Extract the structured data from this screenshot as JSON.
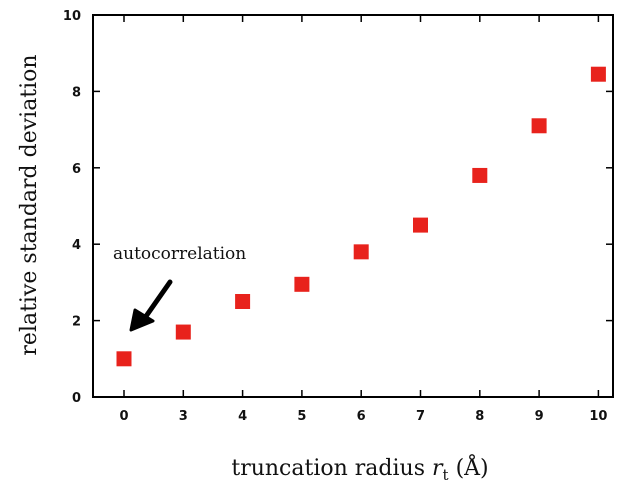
{
  "chart_data": {
    "type": "scatter",
    "xlabel": "truncation radius",
    "xlabel_symbol": "r",
    "xlabel_subscript": "t",
    "xlabel_unit": "(Å)",
    "ylabel": "relative standard deviation",
    "categories": [
      "0",
      "3",
      "4",
      "5",
      "6",
      "7",
      "8",
      "9",
      "10"
    ],
    "values": [
      1.0,
      1.7,
      2.5,
      2.95,
      3.8,
      4.5,
      5.8,
      7.1,
      8.45
    ],
    "ylim": [
      0,
      10
    ],
    "yticks": [
      "0",
      "2",
      "4",
      "6",
      "8",
      "10"
    ],
    "grid": false,
    "marker_color": "#e8221c",
    "annotation": {
      "text": "autocorrelation",
      "target_category": "0"
    }
  }
}
